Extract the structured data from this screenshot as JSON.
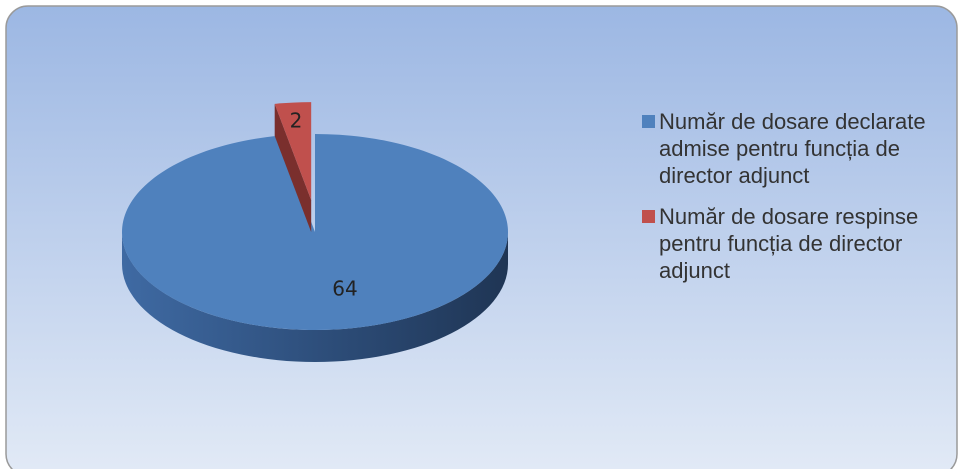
{
  "chart_data": {
    "type": "pie",
    "categories": [
      "Număr de dosare declarate admise pentru funcția de director adjunct",
      "Număr de dosare respinse pentru funcția de director adjunct"
    ],
    "values": [
      64,
      2
    ],
    "colors": [
      "#4f81bd",
      "#c0504d"
    ],
    "legend": "right"
  }
}
